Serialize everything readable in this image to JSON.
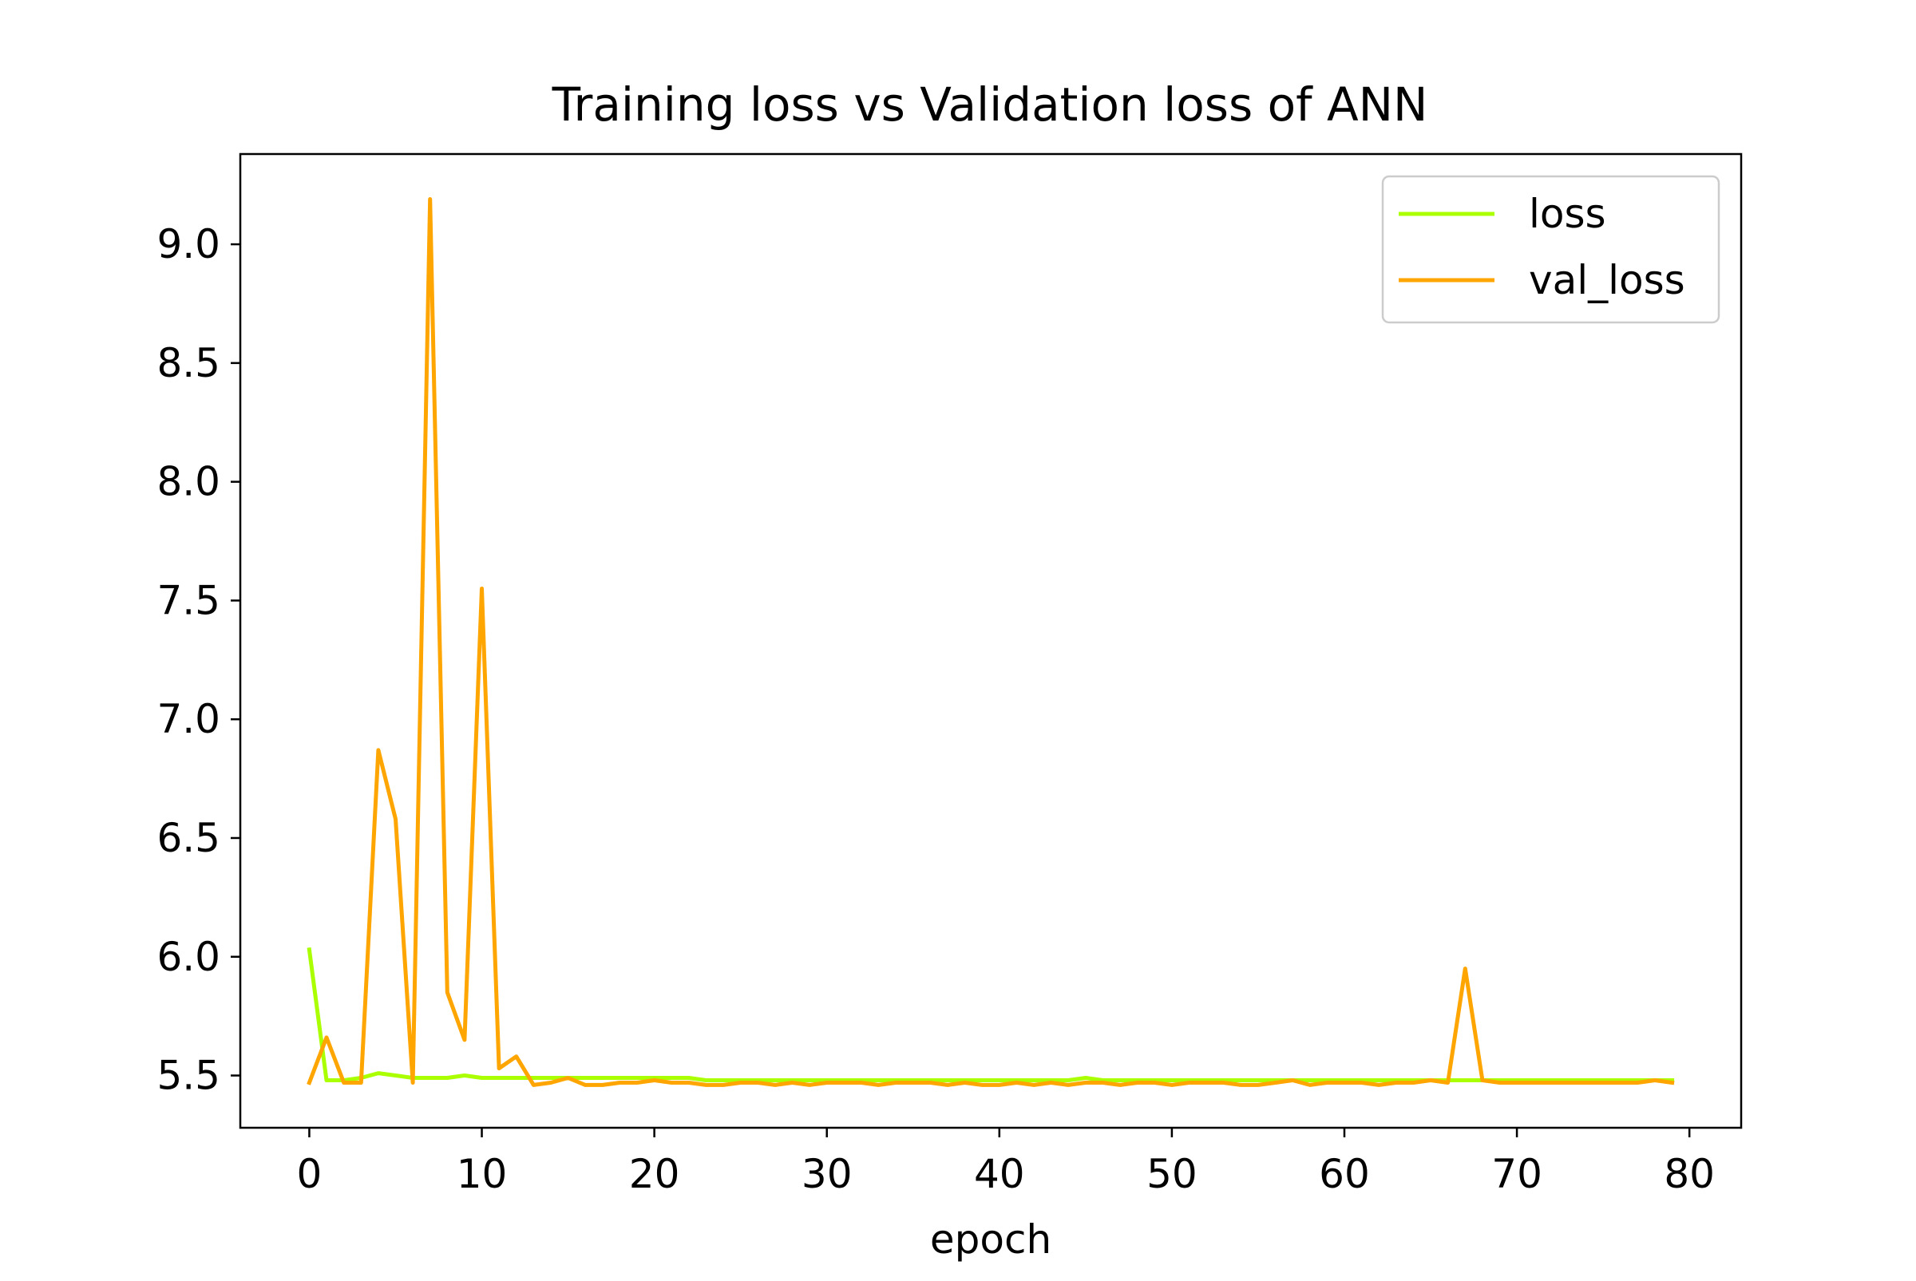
{
  "chart_data": {
    "type": "line",
    "title": "Training loss vs Validation loss of ANN",
    "xlabel": "epoch",
    "ylabel": "",
    "xlim": [
      -4,
      83
    ],
    "ylim": [
      5.28,
      9.38
    ],
    "xticks": [
      0,
      10,
      20,
      30,
      40,
      50,
      60,
      70,
      80
    ],
    "xtick_labels": [
      "0",
      "10",
      "20",
      "30",
      "40",
      "50",
      "60",
      "70",
      "80"
    ],
    "yticks": [
      5.5,
      6.0,
      6.5,
      7.0,
      7.5,
      8.0,
      8.5,
      9.0
    ],
    "ytick_labels": [
      "5.5",
      "6.0",
      "6.5",
      "7.0",
      "7.5",
      "8.0",
      "8.5",
      "9.0"
    ],
    "grid": false,
    "legend_position": "top-right",
    "series": [
      {
        "name": "loss",
        "color": "#aaff00",
        "x": [
          0,
          1,
          2,
          3,
          4,
          5,
          6,
          7,
          8,
          9,
          10,
          11,
          12,
          13,
          14,
          15,
          16,
          17,
          18,
          19,
          20,
          21,
          22,
          23,
          24,
          25,
          26,
          27,
          28,
          29,
          30,
          31,
          32,
          33,
          34,
          35,
          36,
          37,
          38,
          39,
          40,
          41,
          42,
          43,
          44,
          45,
          46,
          47,
          48,
          49,
          50,
          51,
          52,
          53,
          54,
          55,
          56,
          57,
          58,
          59,
          60,
          61,
          62,
          63,
          64,
          65,
          66,
          67,
          68,
          69,
          70,
          71,
          72,
          73,
          74,
          75,
          76,
          77,
          78,
          79
        ],
        "values": [
          6.03,
          5.48,
          5.48,
          5.49,
          5.51,
          5.5,
          5.49,
          5.49,
          5.49,
          5.5,
          5.49,
          5.49,
          5.49,
          5.49,
          5.49,
          5.49,
          5.49,
          5.49,
          5.49,
          5.49,
          5.49,
          5.49,
          5.49,
          5.48,
          5.48,
          5.48,
          5.48,
          5.48,
          5.48,
          5.48,
          5.48,
          5.48,
          5.48,
          5.48,
          5.48,
          5.48,
          5.48,
          5.48,
          5.48,
          5.48,
          5.48,
          5.48,
          5.48,
          5.48,
          5.48,
          5.49,
          5.48,
          5.48,
          5.48,
          5.48,
          5.48,
          5.48,
          5.48,
          5.48,
          5.48,
          5.48,
          5.48,
          5.48,
          5.48,
          5.48,
          5.48,
          5.48,
          5.48,
          5.48,
          5.48,
          5.48,
          5.48,
          5.48,
          5.48,
          5.48,
          5.48,
          5.48,
          5.48,
          5.48,
          5.48,
          5.48,
          5.48,
          5.48,
          5.48,
          5.48
        ]
      },
      {
        "name": "val_loss",
        "color": "#ffa500",
        "x": [
          0,
          1,
          2,
          3,
          4,
          5,
          6,
          7,
          8,
          9,
          10,
          11,
          12,
          13,
          14,
          15,
          16,
          17,
          18,
          19,
          20,
          21,
          22,
          23,
          24,
          25,
          26,
          27,
          28,
          29,
          30,
          31,
          32,
          33,
          34,
          35,
          36,
          37,
          38,
          39,
          40,
          41,
          42,
          43,
          44,
          45,
          46,
          47,
          48,
          49,
          50,
          51,
          52,
          53,
          54,
          55,
          56,
          57,
          58,
          59,
          60,
          61,
          62,
          63,
          64,
          65,
          66,
          67,
          68,
          69,
          70,
          71,
          72,
          73,
          74,
          75,
          76,
          77,
          78,
          79
        ],
        "values": [
          5.47,
          5.66,
          5.47,
          5.47,
          6.87,
          6.58,
          5.47,
          9.19,
          5.85,
          5.65,
          7.55,
          5.53,
          5.58,
          5.46,
          5.47,
          5.49,
          5.46,
          5.46,
          5.47,
          5.47,
          5.48,
          5.47,
          5.47,
          5.46,
          5.46,
          5.47,
          5.47,
          5.46,
          5.47,
          5.46,
          5.47,
          5.47,
          5.47,
          5.46,
          5.47,
          5.47,
          5.47,
          5.46,
          5.47,
          5.46,
          5.46,
          5.47,
          5.46,
          5.47,
          5.46,
          5.47,
          5.47,
          5.46,
          5.47,
          5.47,
          5.46,
          5.47,
          5.47,
          5.47,
          5.46,
          5.46,
          5.47,
          5.48,
          5.46,
          5.47,
          5.47,
          5.47,
          5.46,
          5.47,
          5.47,
          5.48,
          5.47,
          5.95,
          5.48,
          5.47,
          5.47,
          5.47,
          5.47,
          5.47,
          5.47,
          5.47,
          5.47,
          5.47,
          5.48,
          5.47
        ]
      }
    ]
  }
}
